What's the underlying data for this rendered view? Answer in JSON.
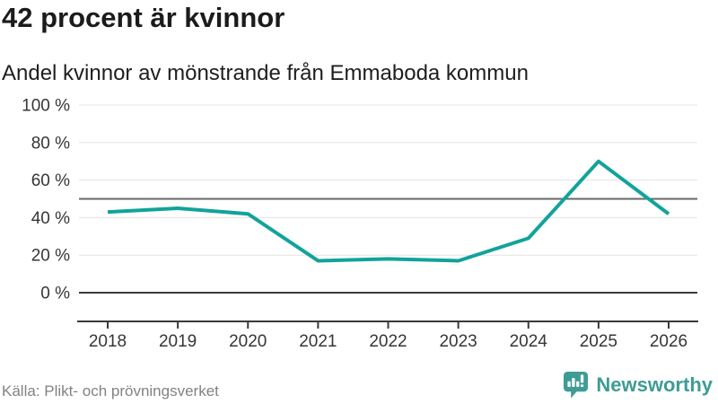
{
  "header": {
    "title": "42 procent är kvinnor",
    "subtitle": "Andel kvinnor av mönstrande från Emmaboda kommun"
  },
  "chart_data": {
    "type": "line",
    "title": "42 procent är kvinnor",
    "subtitle": "Andel kvinnor av mönstrande från Emmaboda kommun",
    "x": [
      "2018",
      "2019",
      "2020",
      "2021",
      "2022",
      "2023",
      "2024",
      "2025",
      "2026"
    ],
    "series": [
      {
        "name": "Andel kvinnor av mönstrande",
        "values": [
          43,
          45,
          42,
          17,
          18,
          17,
          29,
          70,
          42
        ]
      }
    ],
    "unit": "%",
    "xlabel": "",
    "ylabel": "",
    "ylim": [
      0,
      100
    ],
    "yticks": [
      {
        "value": 100,
        "label": "100 %"
      },
      {
        "value": 80,
        "label": "80 %"
      },
      {
        "value": 60,
        "label": "60 %"
      },
      {
        "value": 40,
        "label": "40 %"
      },
      {
        "value": 20,
        "label": "20 %"
      },
      {
        "value": 0,
        "label": "0 %"
      }
    ],
    "reference_line": {
      "value": 50
    },
    "grid": true,
    "legend": "none",
    "markers": "none"
  },
  "footer": {
    "source": "Källa: Plikt- och prövningsverket",
    "brand_name": "Newsworthy",
    "brand_icon": "newsworthy-chart-bubble-icon"
  },
  "colors": {
    "background": "#ffffff",
    "title": "#1b1b1b",
    "subtitle": "#1e1e1e",
    "line": "#12a39a",
    "grid": "#e3e3e3",
    "reference": "#686868",
    "baseline": "#3a3a3a",
    "axis": "#3a3a3a",
    "tick_text": "#363636",
    "source_text": "#828282",
    "brand": "#3f9c94"
  }
}
